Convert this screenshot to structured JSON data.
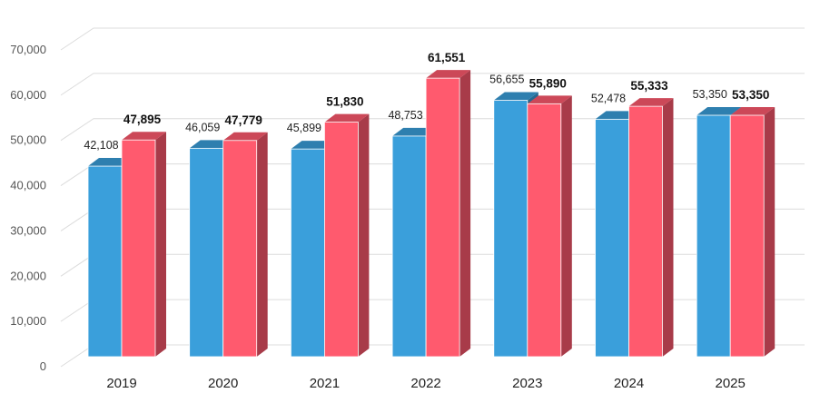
{
  "chart_data": {
    "type": "bar",
    "style": "3d-clustered-column",
    "categories": [
      "2019",
      "2020",
      "2021",
      "2022",
      "2023",
      "2024",
      "2025"
    ],
    "series": [
      {
        "values": [
          42108,
          46059,
          45899,
          48753,
          56655,
          52478,
          53350
        ],
        "color": "#3a9fdb",
        "label_weight": "normal"
      },
      {
        "values": [
          47895,
          47779,
          51830,
          61551,
          55890,
          55333,
          53350
        ],
        "color": "#ff5a6e",
        "label_weight": "bold"
      }
    ],
    "ylim": [
      0,
      70000
    ],
    "yticks": [
      0,
      10000,
      20000,
      30000,
      40000,
      50000,
      60000,
      70000
    ],
    "ytick_labels": [
      "0",
      "10,000",
      "20,000",
      "30,000",
      "40,000",
      "50,000",
      "60,000",
      "70,000"
    ],
    "value_labels_a": [
      "42,108",
      "46,059",
      "45,899",
      "48,753",
      "56,655",
      "52,478",
      "53,350"
    ],
    "value_labels_b": [
      "47,895",
      "47,779",
      "51,830",
      "61,551",
      "55,890",
      "55,333",
      "53,350"
    ],
    "grid": true,
    "legend": "none",
    "title": "",
    "xlabel": "",
    "ylabel": ""
  }
}
